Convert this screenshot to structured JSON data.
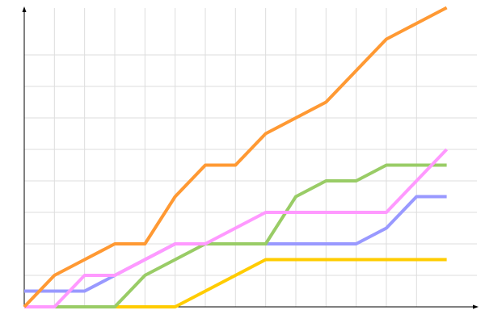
{
  "chart_data": {
    "type": "line",
    "title": "",
    "xlabel": "",
    "ylabel": "",
    "x": [
      0,
      1,
      2,
      3,
      4,
      5,
      6,
      7,
      8,
      9,
      10,
      11,
      12,
      13,
      14
    ],
    "xlim": [
      0,
      15
    ],
    "ylim": [
      0,
      9.5
    ],
    "grid": true,
    "legend": "none",
    "series": [
      {
        "color": "#ffcc00",
        "values": [
          0,
          0,
          0,
          0,
          0,
          0,
          0.5,
          1,
          1.5,
          1.5,
          1.5,
          1.5,
          1.5,
          1.5,
          1.5
        ]
      },
      {
        "color": "#9999ff",
        "values": [
          0.5,
          0.5,
          0.5,
          1,
          1.5,
          2,
          2,
          2,
          2,
          2,
          2,
          2,
          2.5,
          3.5,
          3.5
        ]
      },
      {
        "color": "#99cc66",
        "values": [
          0,
          0,
          0,
          0,
          1,
          1.5,
          2,
          2,
          2,
          3.5,
          4,
          4,
          4.5,
          4.5,
          4.5
        ]
      },
      {
        "color": "#ff99ff",
        "values": [
          0,
          0,
          1,
          1,
          1.5,
          2,
          2,
          2.5,
          3,
          3,
          3,
          3,
          3,
          4,
          5
        ]
      },
      {
        "color": "#ff9933",
        "values": [
          0,
          1,
          1.5,
          2,
          2,
          3.5,
          4.5,
          4.5,
          5.5,
          6,
          6.5,
          7.5,
          8.5,
          9,
          9.5
        ]
      }
    ]
  }
}
